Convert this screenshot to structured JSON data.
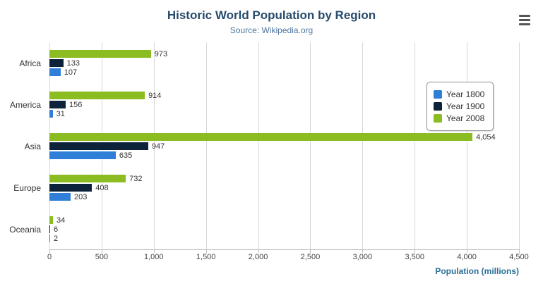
{
  "header": {
    "title": "Historic World Population by Region",
    "subtitle": "Source: Wikipedia.org"
  },
  "chart_data": {
    "type": "bar",
    "orientation": "horizontal",
    "title": "Historic World Population by Region",
    "subtitle": "Source: Wikipedia.org",
    "categories": [
      "Africa",
      "America",
      "Asia",
      "Europe",
      "Oceania"
    ],
    "series": [
      {
        "name": "Year 1800",
        "color": "#2f7ed8",
        "values": [
          107,
          31,
          635,
          203,
          2
        ]
      },
      {
        "name": "Year 1900",
        "color": "#0d233a",
        "values": [
          133,
          156,
          947,
          408,
          6
        ]
      },
      {
        "name": "Year 2008",
        "color": "#8bbc21",
        "values": [
          973,
          914,
          4054,
          732,
          34
        ]
      }
    ],
    "series_display_order_top_to_bottom": [
      "Year 2008",
      "Year 1900",
      "Year 1800"
    ],
    "xlabel": "Population (millions)",
    "xlim": [
      0,
      4500
    ],
    "x_ticks": [
      0,
      500,
      1000,
      1500,
      2000,
      2500,
      3000,
      3500,
      4000,
      4500
    ],
    "grid": true,
    "legend_position": "right"
  }
}
